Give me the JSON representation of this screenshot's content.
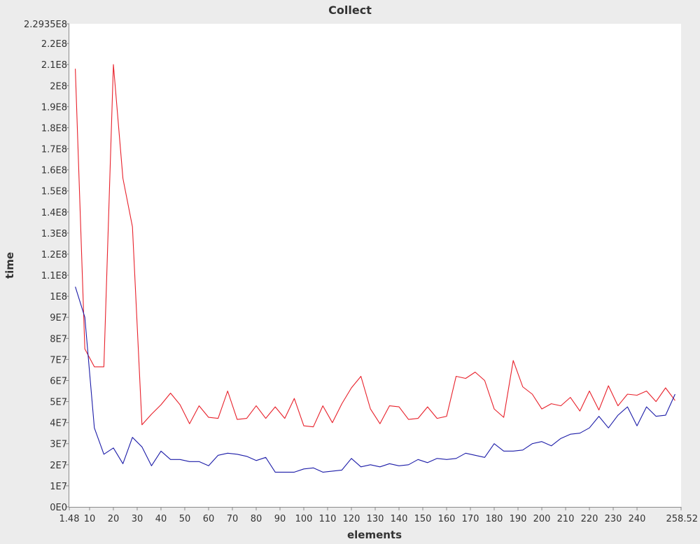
{
  "chart_data": {
    "type": "line",
    "title": "Collect",
    "xlabel": "elements",
    "ylabel": "time",
    "xlim": [
      1.48,
      258.52
    ],
    "ylim": [
      0,
      229350000
    ],
    "x_tick_labels": [
      "1.48",
      "10",
      "20",
      "30",
      "40",
      "50",
      "60",
      "70",
      "80",
      "90",
      "100",
      "110",
      "120",
      "130",
      "140",
      "150",
      "160",
      "170",
      "180",
      "190",
      "200",
      "210",
      "220",
      "230",
      "240",
      "258.52"
    ],
    "x_tick_values": [
      1.48,
      10,
      20,
      30,
      40,
      50,
      60,
      70,
      80,
      90,
      100,
      110,
      120,
      130,
      140,
      150,
      160,
      170,
      180,
      190,
      200,
      210,
      220,
      230,
      240,
      258.52
    ],
    "y_tick_labels": [
      "0E0",
      "1E7",
      "2E7",
      "3E7",
      "4E7",
      "5E7",
      "6E7",
      "7E7",
      "8E7",
      "9E7",
      "1E8",
      "1.1E8",
      "1.2E8",
      "1.3E8",
      "1.4E8",
      "1.5E8",
      "1.6E8",
      "1.7E8",
      "1.8E8",
      "1.9E8",
      "2E8",
      "2.1E8",
      "2.2E8",
      "2.2935E8"
    ],
    "y_tick_values": [
      0,
      10000000,
      20000000,
      30000000,
      40000000,
      50000000,
      60000000,
      70000000,
      80000000,
      90000000,
      100000000,
      110000000,
      120000000,
      130000000,
      140000000,
      150000000,
      160000000,
      170000000,
      180000000,
      190000000,
      200000000,
      210000000,
      220000000,
      229350000
    ],
    "grid": false,
    "legend": "none",
    "x": [
      4,
      8,
      12,
      16,
      20,
      24,
      28,
      32,
      36,
      40,
      44,
      48,
      52,
      56,
      60,
      64,
      68,
      72,
      76,
      80,
      84,
      88,
      92,
      96,
      100,
      104,
      108,
      112,
      116,
      120,
      124,
      128,
      132,
      136,
      140,
      144,
      148,
      152,
      156,
      160,
      164,
      168,
      172,
      176,
      180,
      184,
      188,
      192,
      196,
      200,
      204,
      208,
      212,
      216,
      220,
      224,
      228,
      232,
      236,
      240,
      244,
      248,
      252,
      256
    ],
    "series": [
      {
        "color": "#e8202a",
        "values": [
          208000000,
          75000000,
          66500000,
          66500000,
          210000000,
          156000000,
          133000000,
          39000000,
          44000000,
          48500000,
          54000000,
          48500000,
          39500000,
          48000000,
          42500000,
          42000000,
          55000000,
          41500000,
          42000000,
          48000000,
          42000000,
          47500000,
          42000000,
          51500000,
          38500000,
          38000000,
          48000000,
          40000000,
          49000000,
          56500000,
          62000000,
          46500000,
          39500000,
          48000000,
          47500000,
          41500000,
          42000000,
          47500000,
          42000000,
          43000000,
          62000000,
          61000000,
          64000000,
          60000000,
          46500000,
          42500000,
          69500000,
          57000000,
          53500000,
          46500000,
          49000000,
          48000000,
          52000000,
          45500000,
          55000000,
          46000000,
          57500000,
          48000000,
          53500000,
          53000000,
          55000000,
          50000000,
          56500000,
          50500000
        ]
      },
      {
        "color": "#1c1ca8",
        "values": [
          104500000,
          90000000,
          37500000,
          25000000,
          28000000,
          20500000,
          33000000,
          28500000,
          19500000,
          26500000,
          22500000,
          22500000,
          21500000,
          21500000,
          19500000,
          24500000,
          25500000,
          25000000,
          24000000,
          22000000,
          23500000,
          16500000,
          16500000,
          16500000,
          18000000,
          18500000,
          16500000,
          17000000,
          17500000,
          23000000,
          19000000,
          20000000,
          19000000,
          20500000,
          19500000,
          20000000,
          22500000,
          21000000,
          23000000,
          22500000,
          23000000,
          25500000,
          24500000,
          23500000,
          30000000,
          26500000,
          26500000,
          27000000,
          30000000,
          31000000,
          29000000,
          32500000,
          34500000,
          35000000,
          37500000,
          43000000,
          37500000,
          43500000,
          47500000,
          38500000,
          47500000,
          43000000,
          43500000,
          53500000
        ]
      }
    ]
  }
}
